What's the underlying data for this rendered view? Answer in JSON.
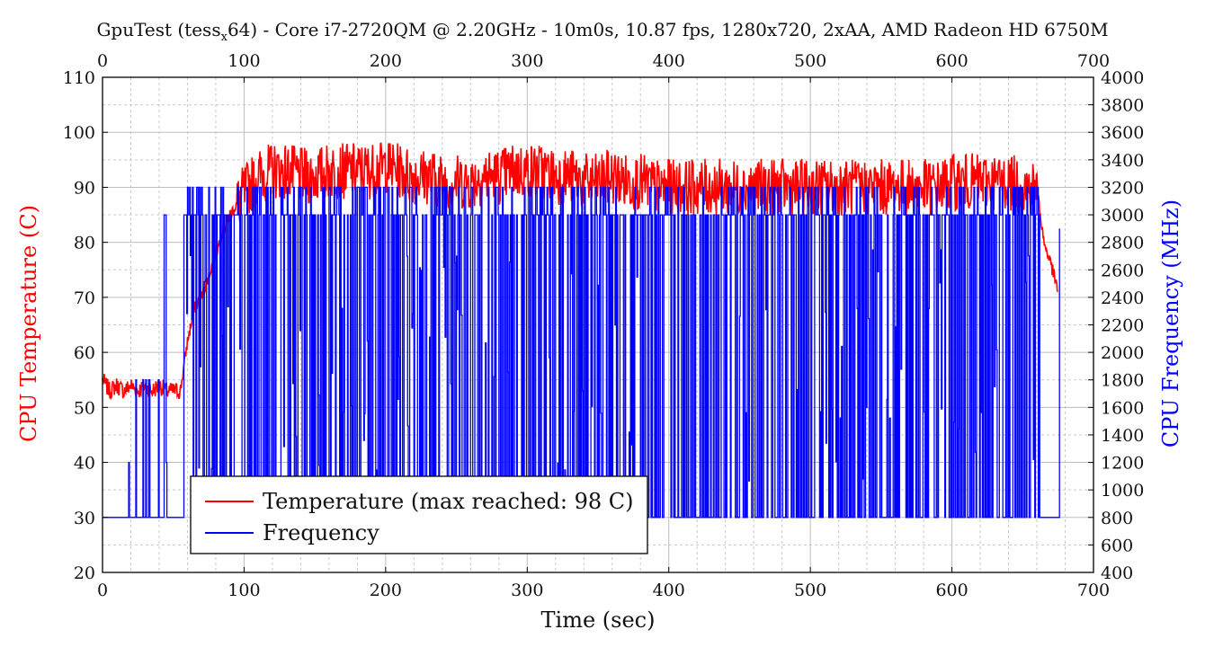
{
  "chart_data": {
    "type": "line",
    "title": "GpuTest (tess",
    "title_sub": "x",
    "title_rest": "64) - Core i7-2720QM @ 2.20GHz - 10m0s, 10.87 fps, 1280x720, 2xAA, AMD Radeon HD 6750M",
    "xlabel": "Time (sec)",
    "ylabel_left": "CPU Temperature (C)",
    "ylabel_right": "CPU Frequency (MHz)",
    "xlim": [
      0,
      700
    ],
    "ylim_left": [
      20,
      110
    ],
    "ylim_right": [
      400,
      4000
    ],
    "x_ticks": [
      0,
      100,
      200,
      300,
      400,
      500,
      600,
      700
    ],
    "x_tick_labels": [
      "0",
      "100",
      "200",
      "300",
      "400",
      "500",
      "600",
      "700"
    ],
    "y_left_ticks": [
      20,
      30,
      40,
      50,
      60,
      70,
      80,
      90,
      100,
      110
    ],
    "y_left_tick_labels": [
      "20",
      "30",
      "40",
      "50",
      "60",
      "70",
      "80",
      "90",
      "100",
      "110"
    ],
    "y_right_ticks": [
      400,
      600,
      800,
      1000,
      1200,
      1400,
      1600,
      1800,
      2000,
      2200,
      2400,
      2600,
      2800,
      3000,
      3200,
      3400,
      3600,
      3800,
      4000
    ],
    "y_right_tick_labels": [
      "400",
      "600",
      "800",
      "1000",
      "1200",
      "1400",
      "1600",
      "1800",
      "2000",
      "2200",
      "2400",
      "2600",
      "2800",
      "3000",
      "3200",
      "3400",
      "3600",
      "3800",
      "4000"
    ],
    "grid": true,
    "legend_placement": "bottom-left",
    "series": [
      {
        "name": "Temperature (max reached: 98 C)",
        "axis": "left",
        "color": "#ff0000",
        "x": [
          0,
          5,
          10,
          15,
          20,
          25,
          30,
          35,
          40,
          45,
          50,
          55,
          60,
          65,
          70,
          75,
          80,
          85,
          90,
          95,
          100,
          110,
          120,
          130,
          140,
          150,
          160,
          170,
          180,
          190,
          200,
          210,
          220,
          230,
          240,
          250,
          260,
          270,
          280,
          290,
          300,
          310,
          320,
          330,
          340,
          350,
          360,
          370,
          380,
          390,
          400,
          410,
          420,
          430,
          440,
          450,
          460,
          470,
          480,
          490,
          500,
          510,
          520,
          530,
          540,
          550,
          560,
          570,
          580,
          590,
          600,
          610,
          620,
          630,
          640,
          650,
          660,
          665,
          670,
          675
        ],
        "y": [
          55,
          53,
          54,
          53,
          54,
          53,
          54,
          53,
          54,
          53,
          53,
          53,
          62,
          68,
          70,
          74,
          78,
          82,
          85,
          87,
          89,
          92,
          93,
          93,
          92,
          92,
          93,
          93,
          93,
          93,
          94,
          93,
          92,
          92,
          91,
          91,
          91,
          92,
          92,
          93,
          93,
          93,
          92,
          92,
          91,
          91,
          92,
          91,
          91,
          90,
          90,
          90,
          90,
          90,
          90,
          90,
          90,
          90,
          90,
          90,
          90,
          90,
          90,
          90,
          90,
          90,
          90,
          90,
          90,
          90,
          91,
          91,
          91,
          91,
          91,
          90,
          90,
          80,
          76,
          71
        ]
      },
      {
        "name": "Frequency",
        "axis": "right",
        "color": "#0000ff",
        "x": [
          0,
          5,
          10,
          15,
          20,
          25,
          30,
          35,
          40,
          45,
          50,
          55,
          60,
          100,
          200,
          300,
          400,
          500,
          600,
          660,
          665,
          670,
          675,
          676
        ],
        "y": [
          800,
          800,
          800,
          800,
          800,
          800,
          800,
          1800,
          3000,
          1800,
          800,
          800,
          3000,
          3000,
          3000,
          3000,
          3000,
          3000,
          3000,
          3000,
          800,
          800,
          800,
          2900
        ],
        "base_level": 3000,
        "low_level": 800,
        "peak_level": 3200
      }
    ]
  }
}
